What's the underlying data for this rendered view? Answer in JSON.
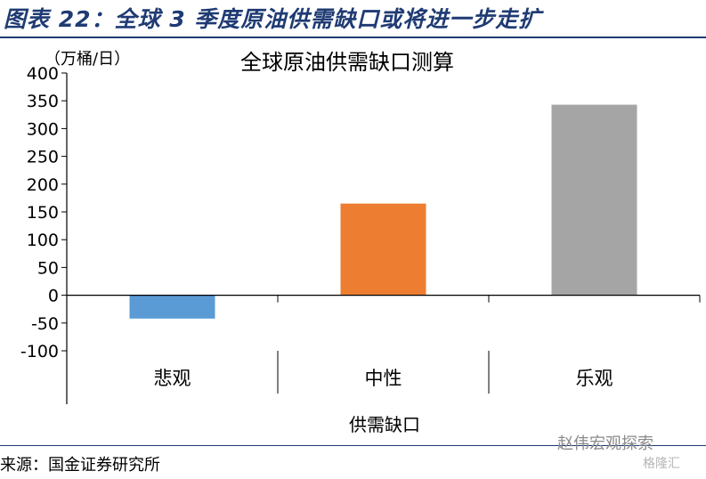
{
  "figure": {
    "title": "图表 22：全球 3 季度原油供需缺口或将进一步走扩",
    "source": "来源：国金证券研究所",
    "watermark": "赵伟宏观探索",
    "watermark2": "格隆汇"
  },
  "chart_data": {
    "type": "bar",
    "title": "全球原油供需缺口测算",
    "unit_label": "（万桶/日）",
    "xlabel": "供需缺口",
    "categories": [
      "悲观",
      "中性",
      "乐观"
    ],
    "values": [
      -42,
      165,
      343
    ],
    "colors": [
      "#5b9bd5",
      "#ed7d31",
      "#a5a5a5"
    ],
    "ylim": [
      -100,
      400
    ],
    "yticks": [
      400,
      350,
      300,
      250,
      200,
      150,
      100,
      50,
      0,
      -50,
      -100
    ],
    "grid": false,
    "legend": "none"
  }
}
